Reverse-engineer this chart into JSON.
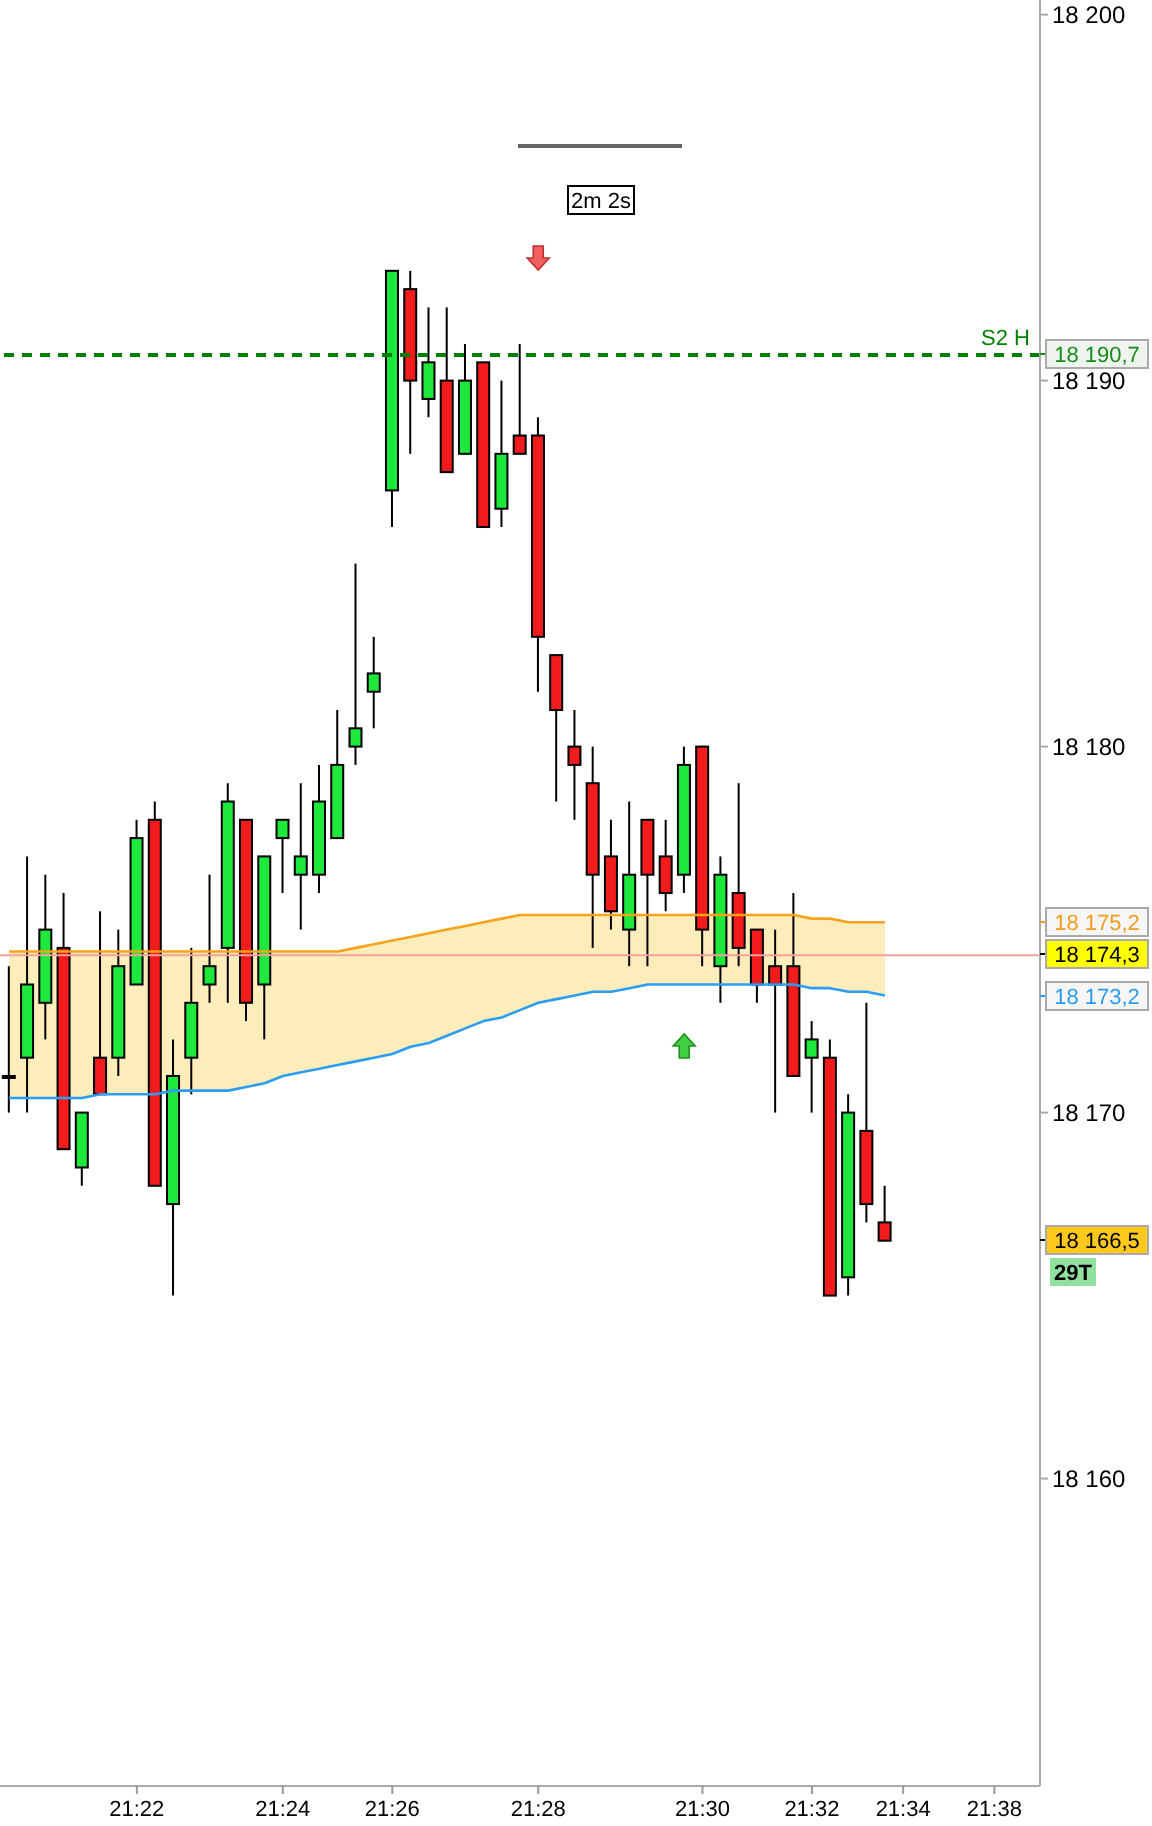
{
  "chart_data": {
    "type": "candlestick",
    "categories": [
      null,
      null,
      null,
      null,
      null,
      null,
      null,
      "21:22",
      null,
      null,
      null,
      null,
      null,
      null,
      null,
      "21:24",
      null,
      null,
      null,
      null,
      null,
      "21:26",
      null,
      null,
      null,
      null,
      null,
      null,
      null,
      "21:28",
      null,
      null,
      null,
      null,
      null,
      null,
      null,
      null,
      "21:30",
      null,
      null,
      null,
      null,
      null,
      "21:32",
      null,
      null,
      null,
      null,
      "21:34",
      null,
      null,
      null,
      null,
      "21:38",
      null,
      null
    ],
    "ohlc": [
      [
        18171,
        18174,
        18170,
        18171
      ],
      [
        18171.5,
        18177,
        18170,
        18173.5
      ],
      [
        18173,
        18176.5,
        18172,
        18175
      ],
      [
        18174.5,
        18176,
        18169,
        18169
      ],
      [
        18168.5,
        18170,
        18168,
        18170
      ],
      [
        18171.5,
        18175.5,
        18170.5,
        18170.5
      ],
      [
        18171.5,
        18175,
        18171,
        18174
      ],
      [
        18173.5,
        18178,
        18173.5,
        18177.5
      ],
      [
        18178,
        18178.5,
        18168,
        18168
      ],
      [
        18167.5,
        18172,
        18165,
        18171
      ],
      [
        18171.5,
        18174.5,
        18170.5,
        18173
      ],
      [
        18173.5,
        18176.5,
        18173,
        18174
      ],
      [
        18174.5,
        18179,
        18173,
        18178.5
      ],
      [
        18178,
        18178,
        18172.5,
        18173
      ],
      [
        18173.5,
        18177,
        18172,
        18177
      ],
      [
        18177.5,
        18178,
        18176,
        18178
      ],
      [
        18176.5,
        18179,
        18175,
        18177
      ],
      [
        18176.5,
        18179.5,
        18176,
        18178.5
      ],
      [
        18177.5,
        18181,
        18177.5,
        18179.5
      ],
      [
        18180,
        18185,
        18179.5,
        18180.5
      ],
      [
        18181.5,
        18183,
        18180.5,
        18182
      ],
      [
        18187,
        18193,
        18186,
        18193
      ],
      [
        18192.5,
        18193,
        18188,
        18190
      ],
      [
        18189.5,
        18192,
        18189,
        18190.5
      ],
      [
        18190,
        18192,
        18187.5,
        18187.5
      ],
      [
        18188,
        18191,
        18188,
        18190
      ],
      [
        18190.5,
        18190.5,
        18186,
        18186
      ],
      [
        18186.5,
        18190,
        18186,
        18188
      ],
      [
        18188.5,
        18191,
        18188,
        18188
      ],
      [
        18188.5,
        18189,
        18181.5,
        18183
      ],
      [
        18182.5,
        18182.5,
        18178.5,
        18181
      ],
      [
        18180,
        18181,
        18178,
        18179.5
      ],
      [
        18179,
        18180,
        18174.5,
        18176.5
      ],
      [
        18177,
        18178,
        18175,
        18175.5
      ],
      [
        18175,
        18178.5,
        18174,
        18176.5
      ],
      [
        18178,
        18178,
        18174,
        18176.5
      ],
      [
        18177,
        18178,
        18175.5,
        18176
      ],
      [
        18176.5,
        18180,
        18176,
        18179.5
      ],
      [
        18180,
        18180,
        18174,
        18175
      ],
      [
        18174,
        18177,
        18173,
        18176.5
      ],
      [
        18176,
        18179,
        18174,
        18174.5
      ],
      [
        18175,
        18175,
        18173,
        18173.5
      ],
      [
        18174,
        18175,
        18170,
        18173.5
      ],
      [
        18174,
        18176,
        18171,
        18171
      ],
      [
        18171.5,
        18172.5,
        18170,
        18172
      ],
      [
        18171.5,
        18172,
        18165,
        18165
      ],
      [
        18165.5,
        18170.5,
        18165,
        18170
      ],
      [
        18169.5,
        18173,
        18167,
        18167.5
      ],
      [
        18167,
        18168,
        18166.5,
        18166.5
      ],
      null,
      null,
      null,
      null,
      null,
      null,
      null,
      null
    ],
    "series": [
      {
        "type": "line",
        "color": "#f7a21b",
        "values": [
          18174.4,
          18174.4,
          18174.4,
          18174.4,
          18174.4,
          18174.4,
          18174.4,
          18174.4,
          18174.4,
          18174.4,
          18174.4,
          18174.4,
          18174.4,
          18174.4,
          18174.4,
          18174.4,
          18174.4,
          18174.4,
          18174.4,
          18174.5,
          18174.6,
          18174.7,
          18174.8,
          18174.9,
          18175,
          18175.1,
          18175.2,
          18175.3,
          18175.4,
          18175.4,
          18175.4,
          18175.4,
          18175.4,
          18175.4,
          18175.4,
          18175.4,
          18175.4,
          18175.4,
          18175.4,
          18175.4,
          18175.4,
          18175.4,
          18175.4,
          18175.4,
          18175.3,
          18175.3,
          18175.2,
          18175.2,
          18175.2,
          null,
          null,
          null,
          null,
          null,
          null,
          null,
          null
        ],
        "lower": [
          18170.4,
          18170.4,
          18170.4,
          18170.4,
          18170.4,
          18170.5,
          18170.5,
          18170.5,
          18170.5,
          18170.6,
          18170.6,
          18170.6,
          18170.6,
          18170.7,
          18170.8,
          18171,
          18171.1,
          18171.2,
          18171.3,
          18171.4,
          18171.5,
          18171.6,
          18171.8,
          18171.9,
          18172.1,
          18172.3,
          18172.5,
          18172.6,
          18172.8,
          18173,
          18173.1,
          18173.2,
          18173.3,
          18173.3,
          18173.4,
          18173.5,
          18173.5,
          18173.5,
          18173.5,
          18173.5,
          18173.5,
          18173.5,
          18173.5,
          18173.5,
          18173.4,
          18173.4,
          18173.3,
          18173.3,
          18173.2,
          null,
          null,
          null,
          null,
          null,
          null,
          null,
          null
        ],
        "upper": [
          18174.4,
          18174.4,
          18174.4,
          18174.4,
          18174.4,
          18174.4,
          18174.4,
          18174.4,
          18174.4,
          18174.4,
          18174.4,
          18174.4,
          18174.4,
          18174.4,
          18174.4,
          18174.4,
          18174.4,
          18174.4,
          18174.4,
          18174.5,
          18174.6,
          18174.7,
          18174.8,
          18174.9,
          18175,
          18175.1,
          18175.2,
          18175.3,
          18175.4,
          18175.4,
          18175.4,
          18175.4,
          18175.4,
          18175.4,
          18175.4,
          18175.4,
          18175.4,
          18175.4,
          18175.4,
          18175.4,
          18175.4,
          18175.4,
          18175.4,
          18175.4,
          18175.3,
          18175.3,
          18175.2,
          18175.2,
          18175.2,
          null,
          null,
          null,
          null,
          null,
          null,
          null,
          null
        ]
      },
      {
        "type": "line",
        "color": "#2a9df4",
        "values": [
          18170.4,
          18170.4,
          18170.4,
          18170.4,
          18170.4,
          18170.5,
          18170.5,
          18170.5,
          18170.5,
          18170.6,
          18170.6,
          18170.6,
          18170.6,
          18170.7,
          18170.8,
          18171,
          18171.1,
          18171.2,
          18171.3,
          18171.4,
          18171.5,
          18171.6,
          18171.8,
          18171.9,
          18172.1,
          18172.3,
          18172.5,
          18172.6,
          18172.8,
          18173,
          18173.1,
          18173.2,
          18173.3,
          18173.3,
          18173.4,
          18173.5,
          18173.5,
          18173.5,
          18173.5,
          18173.5,
          18173.5,
          18173.5,
          18173.5,
          18173.5,
          18173.4,
          18173.4,
          18173.3,
          18173.3,
          18173.2,
          null,
          null,
          null,
          null,
          null,
          null,
          null,
          null
        ]
      }
    ],
    "ylim": [
      18151.6,
      18200.4
    ],
    "yticks": [
      {
        "value": 18160,
        "label": "18 160"
      },
      {
        "value": 18170,
        "label": "18 170"
      },
      {
        "value": 18180,
        "label": "18 180"
      },
      {
        "value": 18190,
        "label": "18 190"
      },
      {
        "value": 18200,
        "label": "18 200"
      }
    ],
    "ref_lines": [
      {
        "axis": "y",
        "value": 18190.7,
        "label": "S2 H",
        "color": "#008000",
        "line_style": "dashed"
      },
      {
        "axis": "y",
        "value": 18174.3,
        "color": "#f4a0a0",
        "line_style": "solid"
      }
    ],
    "annotations": [
      "18 190,7",
      "18 175,2",
      "18 174,3",
      "18 173,2",
      "18 166,5",
      "29T",
      "2m 2s"
    ]
  }
}
